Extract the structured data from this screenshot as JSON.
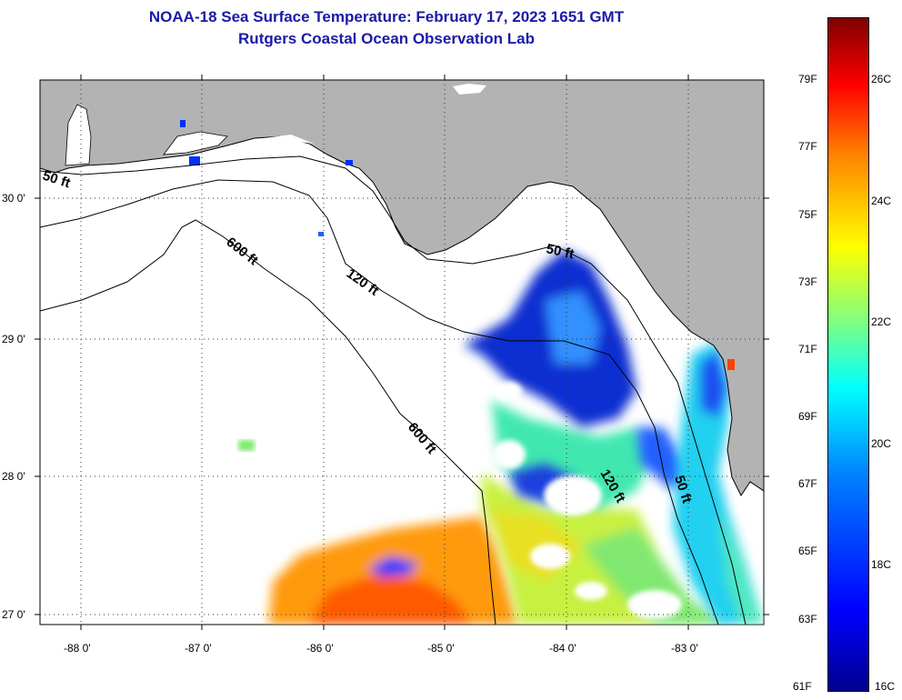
{
  "title_line1": "NOAA-18 Sea Surface Temperature:  February 17, 2023 1651 GMT",
  "title_line2": "Rutgers Coastal Ocean Observation Lab",
  "lat_labels": [
    "30 0'",
    "29 0'",
    "28 0'",
    "27 0'"
  ],
  "lon_labels": [
    "-88 0'",
    "-87 0'",
    "-86 0'",
    "-85 0'",
    "-84 0'",
    "-83 0'"
  ],
  "contour_labels": {
    "c50_west": "50 ft",
    "c600_a": "600 ft",
    "c120": "120 ft",
    "c50_east": "50 ft",
    "c600_b": "600 ft",
    "c120_b": "120 ft",
    "c50_b": "50 ft"
  },
  "colorbar": {
    "fahrenheit": [
      "79F",
      "77F",
      "75F",
      "73F",
      "71F",
      "69F",
      "67F",
      "65F",
      "63F",
      "61F"
    ],
    "celsius": [
      "26C",
      "24C",
      "22C",
      "20C",
      "18C",
      "16C"
    ]
  },
  "colors": {
    "land": "#b3b3b3",
    "title": "#1a1aa8",
    "warm": "#ff8c00",
    "cold": "#0a2fd0"
  }
}
